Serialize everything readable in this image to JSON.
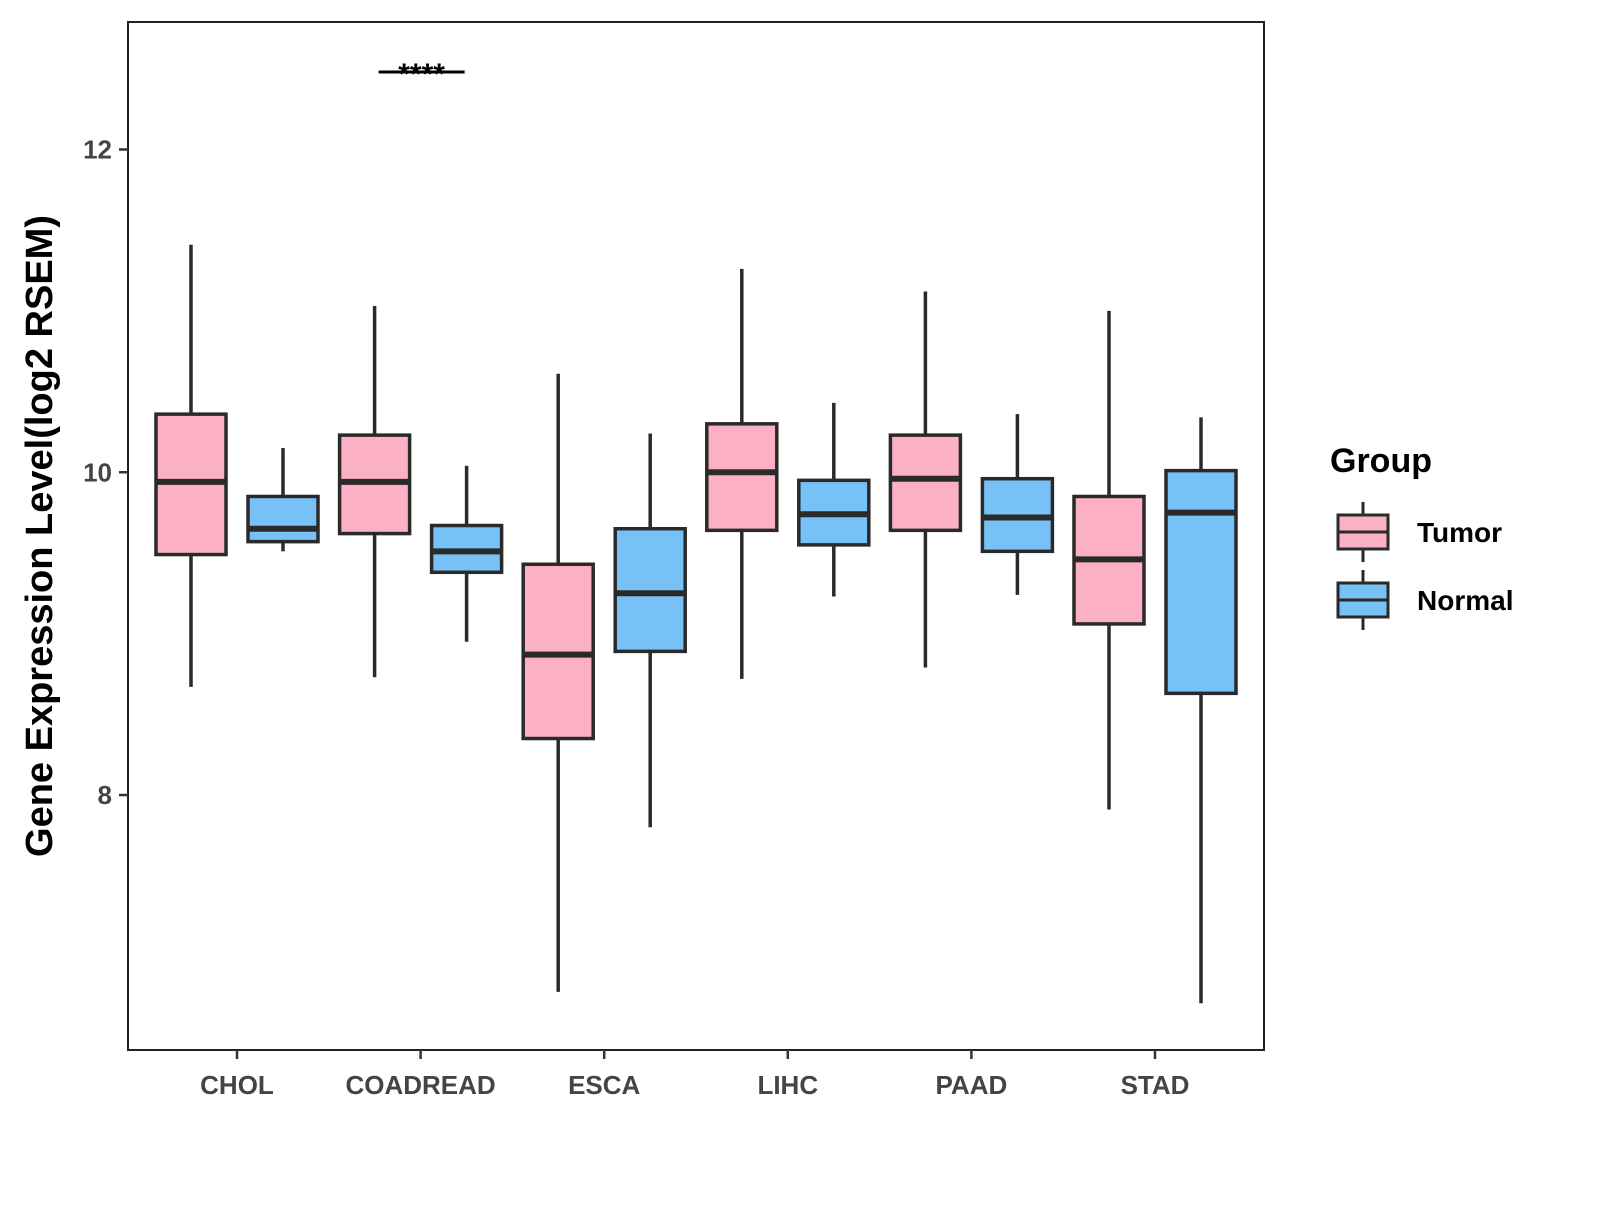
{
  "chart_data": {
    "type": "boxplot",
    "title": "",
    "xlabel": "",
    "ylabel": "Gene Expression Level(log2 RSEM)",
    "ylim": [
      6.42,
      12.79
    ],
    "yticks": [
      8,
      10,
      12
    ],
    "ytick_labels": [
      "8",
      "10",
      "12"
    ],
    "grid": false,
    "categories": [
      "CHOL",
      "COADREAD",
      "ESCA",
      "LIHC",
      "PAAD",
      "STAD"
    ],
    "legend": {
      "title": "Group",
      "placement": "right",
      "entries": [
        "Tumor",
        "Normal"
      ]
    },
    "series": [
      {
        "name": "Tumor",
        "color": "#FBB1C3",
        "boxes": [
          {
            "whisker_low": 8.67,
            "q1": 9.49,
            "median": 9.94,
            "q3": 10.36,
            "whisker_high": 11.41
          },
          {
            "whisker_low": 8.73,
            "q1": 9.62,
            "median": 9.94,
            "q3": 10.23,
            "whisker_high": 11.03
          },
          {
            "whisker_low": 6.78,
            "q1": 8.35,
            "median": 8.87,
            "q3": 9.43,
            "whisker_high": 10.61
          },
          {
            "whisker_low": 8.72,
            "q1": 9.64,
            "median": 10.0,
            "q3": 10.3,
            "whisker_high": 11.26
          },
          {
            "whisker_low": 8.79,
            "q1": 9.64,
            "median": 9.96,
            "q3": 10.23,
            "whisker_high": 11.12
          },
          {
            "whisker_low": 7.91,
            "q1": 9.06,
            "median": 9.46,
            "q3": 9.85,
            "whisker_high": 11.0
          }
        ]
      },
      {
        "name": "Normal",
        "color": "#78C1F7",
        "boxes": [
          {
            "whisker_low": 9.51,
            "q1": 9.57,
            "median": 9.65,
            "q3": 9.85,
            "whisker_high": 10.15
          },
          {
            "whisker_low": 8.95,
            "q1": 9.38,
            "median": 9.51,
            "q3": 9.67,
            "whisker_high": 10.04
          },
          {
            "whisker_low": 7.8,
            "q1": 8.89,
            "median": 9.25,
            "q3": 9.65,
            "whisker_high": 10.24
          },
          {
            "whisker_low": 9.23,
            "q1": 9.55,
            "median": 9.74,
            "q3": 9.95,
            "whisker_high": 10.43
          },
          {
            "whisker_low": 9.24,
            "q1": 9.51,
            "median": 9.72,
            "q3": 9.96,
            "whisker_high": 10.36
          },
          {
            "whisker_low": 6.71,
            "q1": 8.63,
            "median": 9.75,
            "q3": 10.01,
            "whisker_high": 10.34
          }
        ]
      }
    ],
    "annotations": [
      {
        "category": "COADREAD",
        "label": "****",
        "y": 12.48
      }
    ]
  }
}
